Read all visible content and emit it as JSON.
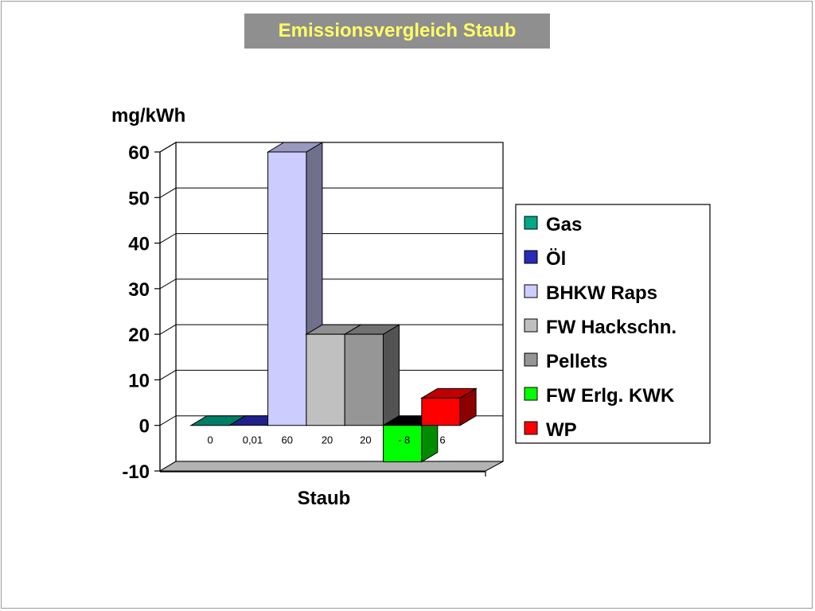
{
  "chart_data": {
    "type": "bar",
    "title": "Emissionsvergleich Staub",
    "ylabel": "mg/kWh",
    "xlabel": "",
    "categories": [
      "Staub"
    ],
    "ylim": [
      -10,
      60
    ],
    "yticks": [
      60,
      50,
      40,
      30,
      20,
      10,
      0,
      -10
    ],
    "grid": true,
    "legend_position": "right",
    "series": [
      {
        "name": "Gas",
        "values": [
          0
        ],
        "label": "0",
        "color": "#00a887"
      },
      {
        "name": "Öl",
        "values": [
          0.01
        ],
        "label": "0,01",
        "color": "#2a2ab8"
      },
      {
        "name": "BHKW Raps",
        "values": [
          60
        ],
        "label": "60",
        "color": "#ccccff"
      },
      {
        "name": "FW Hackschn.",
        "values": [
          20
        ],
        "label": "20",
        "color": "#c0c0c0"
      },
      {
        "name": "Pellets",
        "values": [
          20
        ],
        "label": "20",
        "color": "#969696"
      },
      {
        "name": "FW Erlg. KWK",
        "values": [
          -8
        ],
        "label": "- 8",
        "color": "#00ff00"
      },
      {
        "name": "WP",
        "values": [
          6
        ],
        "label": "6",
        "color": "#ff0000"
      }
    ]
  }
}
